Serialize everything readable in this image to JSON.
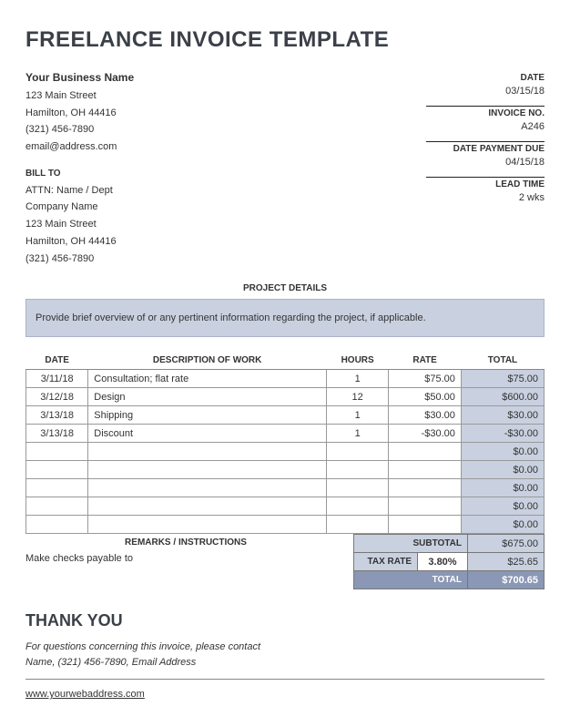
{
  "title": "FREELANCE INVOICE TEMPLATE",
  "business": {
    "name": "Your Business Name",
    "street": "123 Main Street",
    "city": "Hamilton, OH 44416",
    "phone": "(321) 456-7890",
    "email": "email@address.com"
  },
  "meta": {
    "date_label": "DATE",
    "date": "03/15/18",
    "invoice_no_label": "INVOICE NO.",
    "invoice_no": "A246",
    "payment_due_label": "DATE PAYMENT DUE",
    "payment_due": "04/15/18",
    "lead_time_label": "LEAD TIME",
    "lead_time": "2 wks"
  },
  "bill_to": {
    "label": "BILL TO",
    "attn": "ATTN: Name / Dept",
    "company": "Company Name",
    "street": "123 Main Street",
    "city": "Hamilton, OH 44416",
    "phone": "(321) 456-7890"
  },
  "project": {
    "header": "PROJECT DETAILS",
    "text": "Provide brief overview of or any pertinent information regarding the project, if applicable."
  },
  "table": {
    "headers": {
      "date": "DATE",
      "desc": "DESCRIPTION OF WORK",
      "hours": "HOURS",
      "rate": "RATE",
      "total": "TOTAL"
    },
    "rows": [
      {
        "date": "3/11/18",
        "desc": "Consultation; flat rate",
        "hours": "1",
        "rate": "$75.00",
        "total": "$75.00"
      },
      {
        "date": "3/12/18",
        "desc": "Design",
        "hours": "12",
        "rate": "$50.00",
        "total": "$600.00"
      },
      {
        "date": "3/13/18",
        "desc": "Shipping",
        "hours": "1",
        "rate": "$30.00",
        "total": "$30.00"
      },
      {
        "date": "3/13/18",
        "desc": "Discount",
        "hours": "1",
        "rate": "-$30.00",
        "total": "-$30.00"
      },
      {
        "date": "",
        "desc": "",
        "hours": "",
        "rate": "",
        "total": "$0.00"
      },
      {
        "date": "",
        "desc": "",
        "hours": "",
        "rate": "",
        "total": "$0.00"
      },
      {
        "date": "",
        "desc": "",
        "hours": "",
        "rate": "",
        "total": "$0.00"
      },
      {
        "date": "",
        "desc": "",
        "hours": "",
        "rate": "",
        "total": "$0.00"
      },
      {
        "date": "",
        "desc": "",
        "hours": "",
        "rate": "",
        "total": "$0.00"
      }
    ]
  },
  "remarks": {
    "header": "REMARKS / INSTRUCTIONS",
    "text": "Make checks payable to"
  },
  "totals": {
    "subtotal_label": "SUBTOTAL",
    "subtotal": "$675.00",
    "tax_rate_label": "TAX RATE",
    "tax_rate": "3.80%",
    "tax_amount": "$25.65",
    "total_label": "TOTAL",
    "total": "$700.65"
  },
  "footer": {
    "thank_you": "THANK YOU",
    "note1": "For questions concerning this invoice, please contact",
    "note2": "Name, (321) 456-7890, Email Address",
    "web": "www.yourwebaddress.com"
  },
  "colors": {
    "shade": "#c9d1e0",
    "darkshade": "#8a97b5",
    "text": "#333333",
    "heading": "#3b4048"
  }
}
